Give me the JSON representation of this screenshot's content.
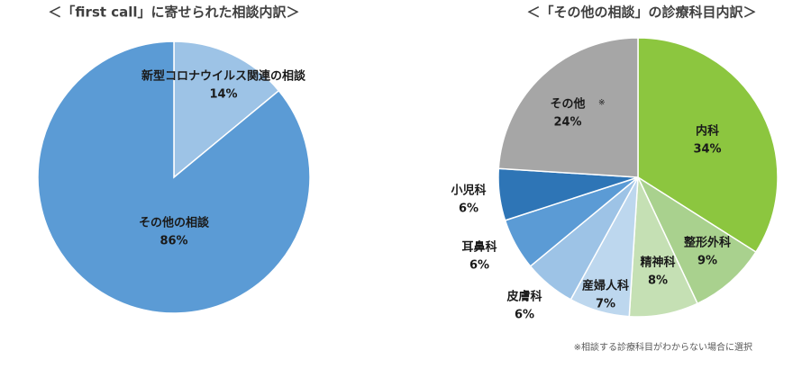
{
  "chart_data": [
    {
      "type": "pie",
      "title": "＜「first call」に寄せられた相談内訳＞",
      "categories": [
        "新型コロナウイルス関連の相談",
        "その他の相談"
      ],
      "values": [
        14,
        86
      ],
      "value_labels": [
        "14%",
        "86%"
      ],
      "colors": [
        "#9dc3e6",
        "#5b9bd5"
      ]
    },
    {
      "type": "pie",
      "title": "＜「その他の相談」の診療科目内訳＞",
      "categories": [
        "内科",
        "整形外科",
        "精神科",
        "産婦人科",
        "皮膚科",
        "耳鼻科",
        "小児科",
        "その他"
      ],
      "values": [
        34,
        9,
        8,
        7,
        6,
        6,
        6,
        24
      ],
      "value_labels": [
        "34%",
        "9%",
        "8%",
        "7%",
        "6%",
        "6%",
        "6%",
        "24%"
      ],
      "colors": [
        "#8cc63f",
        "#a9d18e",
        "#c5e0b4",
        "#bdd7ee",
        "#9dc3e6",
        "#5b9bd5",
        "#2e75b6",
        "#a6a6a6"
      ],
      "footnote_mark": "※",
      "note": "※相談する診療科目がわからない場合に選択"
    }
  ]
}
